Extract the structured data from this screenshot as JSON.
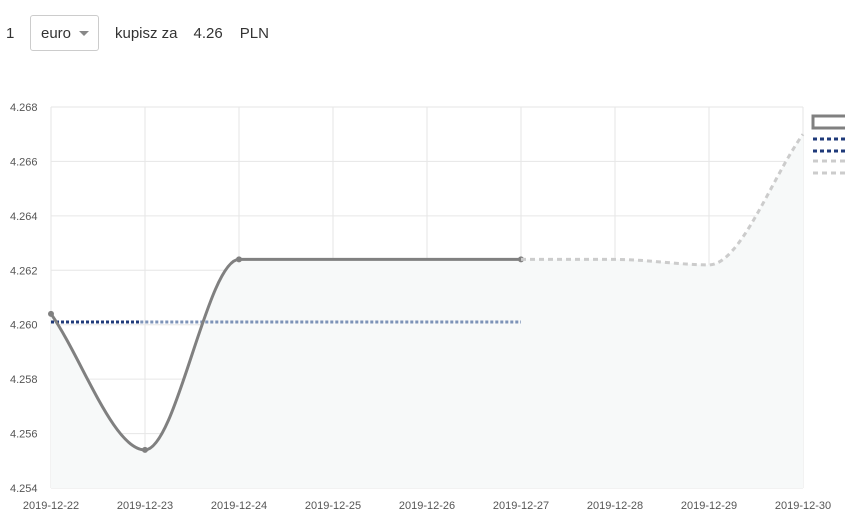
{
  "converter": {
    "amount": "1",
    "currency": "euro",
    "buy_label": "kupisz za",
    "rate": "4.26",
    "unit": "PLN"
  },
  "colors": {
    "actual_line": "#808080",
    "average_line": "#1f3a7a",
    "average_line_light": "#7d93b8",
    "forecast_line": "#cccccc",
    "area_fill": "#f7f9f9",
    "grid": "#e6e6e6"
  },
  "chart_data": {
    "type": "line",
    "x_ticks": [
      "2019-12-22",
      "2019-12-23",
      "2019-12-24",
      "2019-12-25",
      "2019-12-26",
      "2019-12-27",
      "2019-12-28",
      "2019-12-29",
      "2019-12-30"
    ],
    "y_ticks": [
      "4.254",
      "4.256",
      "4.258",
      "4.260",
      "4.262",
      "4.264",
      "4.266",
      "4.268"
    ],
    "ylim": [
      4.254,
      4.268
    ],
    "xlim": [
      "2019-12-22",
      "2019-12-30"
    ],
    "grid": true,
    "legend_position": "right",
    "series": [
      {
        "style": "solid",
        "x": [
          "2019-12-22",
          "2019-12-23",
          "2019-12-24",
          "2019-12-27"
        ],
        "y": [
          4.2604,
          4.2554,
          4.2624,
          4.2624
        ]
      },
      {
        "style": "dotted",
        "x": [
          "2019-12-22",
          "2019-12-27"
        ],
        "y": [
          4.2601,
          4.2601
        ]
      },
      {
        "style": "dashed",
        "x": [
          "2019-12-27",
          "2019-12-28",
          "2019-12-29",
          "2019-12-30"
        ],
        "y": [
          4.2624,
          4.2624,
          4.2622,
          4.267
        ]
      }
    ]
  }
}
